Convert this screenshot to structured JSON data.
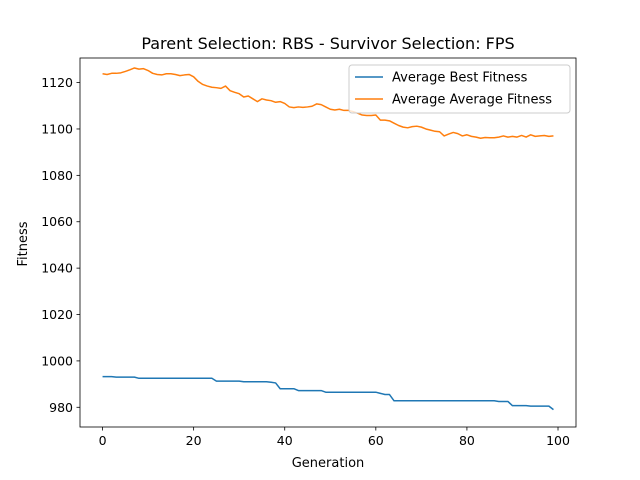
{
  "chart_data": {
    "type": "line",
    "title": "Parent Selection: RBS - Survivor Selection: FPS",
    "xlabel": "Generation",
    "ylabel": "Fitness",
    "xlim": [
      -4.95,
      103.95
    ],
    "ylim": [
      971.5,
      1130.6
    ],
    "xticks": [
      0,
      20,
      40,
      60,
      80,
      100
    ],
    "yticks": [
      980,
      1000,
      1020,
      1040,
      1060,
      1080,
      1100,
      1120
    ],
    "grid": false,
    "legend_position": "top-right",
    "series": [
      {
        "name": "Average Best Fitness",
        "color": "#1f77b4",
        "values": [
          993.2,
          993.2,
          993.2,
          993.0,
          993.0,
          993.0,
          993.0,
          993.0,
          992.5,
          992.5,
          992.5,
          992.5,
          992.5,
          992.5,
          992.5,
          992.5,
          992.5,
          992.5,
          992.5,
          992.5,
          992.5,
          992.5,
          992.5,
          992.5,
          992.5,
          991.3,
          991.3,
          991.3,
          991.3,
          991.3,
          991.3,
          991.0,
          991.0,
          991.0,
          991.0,
          991.0,
          991.0,
          990.8,
          990.5,
          988.0,
          988.0,
          988.0,
          988.0,
          987.2,
          987.2,
          987.2,
          987.2,
          987.2,
          987.2,
          986.5,
          986.5,
          986.5,
          986.5,
          986.5,
          986.5,
          986.5,
          986.5,
          986.5,
          986.5,
          986.5,
          986.5,
          986.0,
          985.5,
          985.5,
          982.8,
          982.8,
          982.8,
          982.8,
          982.8,
          982.8,
          982.8,
          982.8,
          982.8,
          982.8,
          982.8,
          982.8,
          982.8,
          982.8,
          982.8,
          982.8,
          982.8,
          982.8,
          982.8,
          982.8,
          982.8,
          982.8,
          982.8,
          982.5,
          982.5,
          982.5,
          980.7,
          980.7,
          980.7,
          980.7,
          980.5,
          980.5,
          980.5,
          980.5,
          980.5,
          979.0
        ]
      },
      {
        "name": "Average Average Fitness",
        "color": "#ff7f0e",
        "values": [
          1123.8,
          1123.5,
          1124.0,
          1124.0,
          1124.2,
          1124.8,
          1125.5,
          1126.3,
          1125.8,
          1126.0,
          1125.2,
          1124.0,
          1123.5,
          1123.3,
          1123.8,
          1123.8,
          1123.5,
          1123.0,
          1123.3,
          1123.5,
          1122.5,
          1120.5,
          1119.2,
          1118.5,
          1118.0,
          1117.8,
          1117.5,
          1118.5,
          1116.5,
          1115.8,
          1115.2,
          1113.8,
          1114.2,
          1113.0,
          1111.8,
          1113.0,
          1112.5,
          1112.2,
          1111.5,
          1111.8,
          1111.0,
          1109.5,
          1109.2,
          1109.5,
          1109.3,
          1109.5,
          1109.8,
          1110.8,
          1110.5,
          1109.5,
          1108.5,
          1108.2,
          1108.5,
          1108.0,
          1108.0,
          1107.5,
          1106.8,
          1106.0,
          1105.8,
          1105.8,
          1106.0,
          1103.8,
          1103.8,
          1103.5,
          1102.5,
          1101.5,
          1100.8,
          1100.5,
          1101.0,
          1101.2,
          1100.8,
          1100.0,
          1099.5,
          1099.0,
          1098.8,
          1097.0,
          1097.8,
          1098.5,
          1098.0,
          1097.0,
          1097.5,
          1096.8,
          1096.5,
          1096.0,
          1096.3,
          1096.2,
          1096.2,
          1096.5,
          1097.0,
          1096.5,
          1096.8,
          1096.5,
          1097.2,
          1096.5,
          1097.5,
          1096.8,
          1097.0,
          1097.2,
          1096.8,
          1097.0
        ]
      }
    ]
  }
}
